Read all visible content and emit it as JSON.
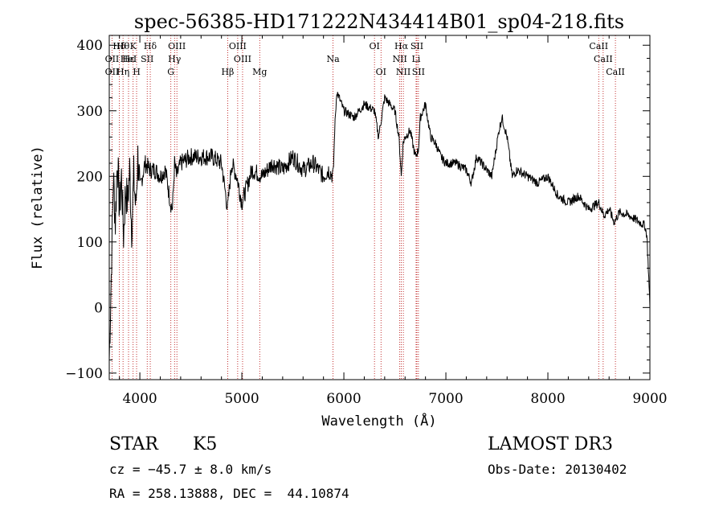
{
  "chart_data": {
    "type": "line",
    "title": "spec-56385-HD171222N434414B01_sp04-218.fits",
    "xlabel": "Wavelength (Å)",
    "ylabel": "Flux (relative)",
    "xlim": [
      3700,
      9000
    ],
    "ylim": [
      -110,
      415
    ],
    "x_ticks": [
      4000,
      5000,
      6000,
      7000,
      8000,
      9000
    ],
    "y_ticks": [
      -100,
      0,
      100,
      200,
      300,
      400
    ],
    "grid": false,
    "series": [
      {
        "x": [
          3700,
          3720,
          3740,
          3760,
          3780,
          3800,
          3820,
          3840,
          3860,
          3880,
          3900,
          3920,
          3940,
          3960,
          3980,
          4000,
          4050,
          4100,
          4150,
          4200,
          4250,
          4300,
          4320,
          4340,
          4360,
          4400,
          4500,
          4600,
          4700,
          4800,
          4860,
          4900,
          4950,
          5000,
          5100,
          5200,
          5300,
          5400,
          5500,
          5600,
          5700,
          5800,
          5850,
          5895,
          5910,
          5930,
          6000,
          6100,
          6200,
          6300,
          6340,
          6400,
          6450,
          6500,
          6540,
          6563,
          6580,
          6600,
          6650,
          6700,
          6730,
          6750,
          6800,
          6850,
          6900,
          6950,
          7000,
          7100,
          7200,
          7250,
          7300,
          7400,
          7450,
          7500,
          7520,
          7550,
          7600,
          7650,
          7700,
          7800,
          7900,
          8000,
          8100,
          8200,
          8300,
          8400,
          8500,
          8550,
          8600,
          8650,
          8700,
          8800,
          8900,
          8950,
          8970,
          8985,
          9000
        ],
        "y": [
          -80,
          50,
          200,
          130,
          230,
          150,
          200,
          110,
          180,
          160,
          210,
          120,
          200,
          150,
          230,
          180,
          220,
          210,
          210,
          200,
          210,
          160,
          150,
          220,
          200,
          220,
          230,
          230,
          230,
          220,
          150,
          220,
          200,
          160,
          210,
          200,
          220,
          210,
          230,
          210,
          220,
          200,
          210,
          200,
          270,
          330,
          300,
          290,
          310,
          300,
          260,
          320,
          310,
          300,
          260,
          200,
          250,
          260,
          270,
          230,
          240,
          290,
          310,
          260,
          250,
          230,
          220,
          220,
          210,
          190,
          230,
          210,
          200,
          250,
          270,
          290,
          260,
          200,
          210,
          200,
          190,
          200,
          170,
          160,
          170,
          150,
          160,
          140,
          150,
          130,
          145,
          140,
          130,
          125,
          110,
          60,
          0
        ]
      }
    ],
    "line_labels": [
      {
        "label": "Hδ",
        "x": 3798,
        "row": 0
      },
      {
        "label": "OII",
        "x": 3727,
        "row": 1
      },
      {
        "label": "OII",
        "x": 3727,
        "row": 2
      },
      {
        "label": "Hθ",
        "x": 3835,
        "row": 0
      },
      {
        "label": "Hε",
        "x": 3889,
        "row": 1
      },
      {
        "label": "Hη",
        "x": 3835,
        "row": 2
      },
      {
        "label": "K",
        "x": 3934,
        "row": 0
      },
      {
        "label": "HeI",
        "x": 3889,
        "row": 1
      },
      {
        "label": "H",
        "x": 3968,
        "row": 2
      },
      {
        "label": "Hδ",
        "x": 4102,
        "row": 0
      },
      {
        "label": "SII",
        "x": 4072,
        "row": 1
      },
      {
        "label": "OIII",
        "x": 4363,
        "row": 0
      },
      {
        "label": "Hγ",
        "x": 4340,
        "row": 1
      },
      {
        "label": "G",
        "x": 4304,
        "row": 2
      },
      {
        "label": "Hβ",
        "x": 4861,
        "row": 2
      },
      {
        "label": "OIII",
        "x": 4959,
        "row": 0
      },
      {
        "label": "OIII",
        "x": 5007,
        "row": 1
      },
      {
        "label": "Mg",
        "x": 5175,
        "row": 2
      },
      {
        "label": "Na",
        "x": 5894,
        "row": 1
      },
      {
        "label": "OI",
        "x": 6300,
        "row": 0
      },
      {
        "label": "OI",
        "x": 6364,
        "row": 2
      },
      {
        "label": "Hα",
        "x": 6563,
        "row": 0
      },
      {
        "label": "SII",
        "x": 6716,
        "row": 0
      },
      {
        "label": "NII",
        "x": 6548,
        "row": 1
      },
      {
        "label": "Li",
        "x": 6708,
        "row": 1
      },
      {
        "label": "NII",
        "x": 6583,
        "row": 2
      },
      {
        "label": "SII",
        "x": 6731,
        "row": 2
      },
      {
        "label": "CaII",
        "x": 8498,
        "row": 0
      },
      {
        "label": "CaII",
        "x": 8542,
        "row": 1
      },
      {
        "label": "CaII",
        "x": 8662,
        "row": 2
      }
    ],
    "line_markers": [
      3727,
      3798,
      3835,
      3889,
      3934,
      3968,
      4072,
      4102,
      4304,
      4340,
      4363,
      4861,
      4959,
      5007,
      5175,
      5894,
      6300,
      6364,
      6548,
      6563,
      6583,
      6708,
      6716,
      6731,
      8498,
      8542,
      8662
    ],
    "colors": {
      "spectrum": "#000000",
      "markers": "#b40000",
      "axes": "#000000"
    }
  },
  "footer": {
    "object_class": "STAR",
    "subclass": "K5",
    "survey": "LAMOST DR3",
    "cz": "cz = −45.7 ± 8.0 km/s",
    "obs_date": "Obs-Date: 20130402",
    "coords": "RA = 258.13888, DEC =  44.10874"
  }
}
